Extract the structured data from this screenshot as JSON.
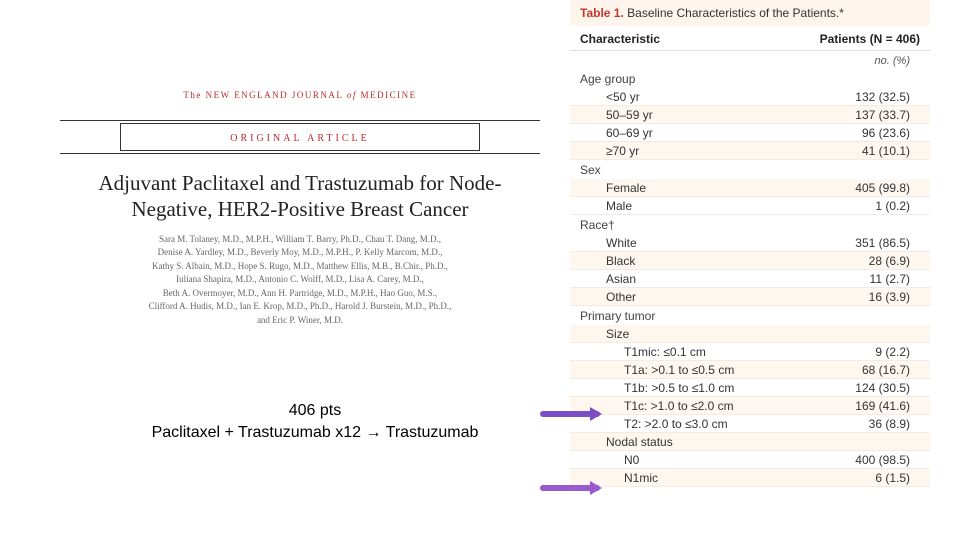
{
  "journal": {
    "prefix": "The",
    "main1": "NEW ENGLAND JOURNAL",
    "of": "of",
    "main2": "MEDICINE",
    "section_label": "ORIGINAL ARTICLE"
  },
  "article": {
    "title": "Adjuvant Paclitaxel and Trastuzumab for Node-Negative, HER2-Positive Breast Cancer",
    "authors_line1": "Sara M. Tolaney, M.D., M.P.H., William T. Barry, Ph.D., Chau T. Dang, M.D.,",
    "authors_line2": "Denise A. Yardley, M.D., Beverly Moy, M.D., M.P.H., P. Kelly Marcom, M.D.,",
    "authors_line3": "Kathy S. Albain, M.D., Hope S. Rugo, M.D., Matthew Ellis, M.B., B.Chir., Ph.D.,",
    "authors_line4": "Iuliana Shapira, M.D., Antonio C. Wolff, M.D., Lisa A. Carey, M.D.,",
    "authors_line5": "Beth A. Overmoyer, M.D., Ann H. Partridge, M.D., M.P.H., Hao Guo, M.S.,",
    "authors_line6": "Clifford A. Hudis, M.D., Ian E. Krop, M.D., Ph.D., Harold J. Burstein, M.D., Ph.D.,",
    "authors_line7": "and Eric P. Winer, M.D."
  },
  "summary": {
    "line1": "406 pts",
    "line2": "Paclitaxel + Trastuzumab x12 → Trastuzumab"
  },
  "table": {
    "label": "Table 1.",
    "caption": "Baseline Characteristics of the Patients.*",
    "col1": "Characteristic",
    "col2": "Patients (N = 406)",
    "units": "no. (%)",
    "sections": {
      "age": {
        "label": "Age group",
        "r1": {
          "l": "<50 yr",
          "v": "132 (32.5)"
        },
        "r2": {
          "l": "50–59 yr",
          "v": "137 (33.7)"
        },
        "r3": {
          "l": "60–69 yr",
          "v": "96 (23.6)"
        },
        "r4": {
          "l": "≥70 yr",
          "v": "41 (10.1)"
        }
      },
      "sex": {
        "label": "Sex",
        "r1": {
          "l": "Female",
          "v": "405 (99.8)"
        },
        "r2": {
          "l": "Male",
          "v": "1 (0.2)"
        }
      },
      "race": {
        "label": "Race†",
        "r1": {
          "l": "White",
          "v": "351 (86.5)"
        },
        "r2": {
          "l": "Black",
          "v": "28 (6.9)"
        },
        "r3": {
          "l": "Asian",
          "v": "11 (2.7)"
        },
        "r4": {
          "l": "Other",
          "v": "16 (3.9)"
        }
      },
      "tumor": {
        "label": "Primary tumor",
        "size_label": "Size",
        "r1": {
          "l": "T1mic: ≤0.1 cm",
          "v": "9 (2.2)"
        },
        "r2": {
          "l": "T1a: >0.1 to ≤0.5 cm",
          "v": "68 (16.7)"
        },
        "r3": {
          "l": "T1b: >0.5 to ≤1.0 cm",
          "v": "124 (30.5)"
        },
        "r4": {
          "l": "T1c: >1.0 to ≤2.0 cm",
          "v": "169 (41.6)"
        },
        "r5": {
          "l": "T2: >2.0 to ≤3.0 cm",
          "v": "36 (8.9)"
        },
        "nodal_label": "Nodal status",
        "n1": {
          "l": "N0",
          "v": "400 (98.5)"
        },
        "n2": {
          "l": "N1mic",
          "v": "6 (1.5)"
        }
      }
    }
  },
  "arrows": {
    "color1": "#7c4dc4",
    "color2": "#9b59d0"
  }
}
